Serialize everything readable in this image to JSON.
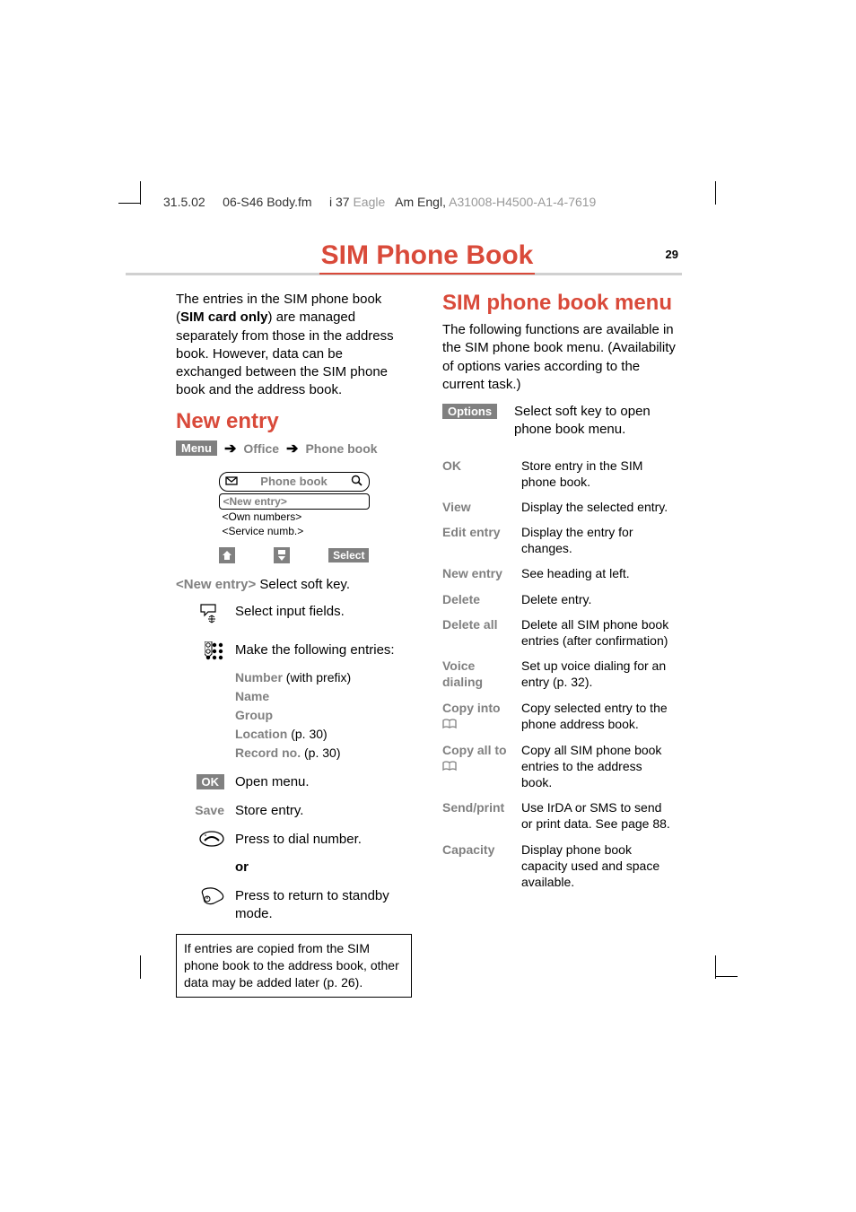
{
  "header": {
    "date": "31.5.02",
    "file": "06-S46 Body.fm",
    "idx": "i 37",
    "project": "Eagle",
    "lang": "Am Engl",
    "docnum": "A31008-H4500-A1-4-7619"
  },
  "page": {
    "title": "SIM Phone Book",
    "number": "29"
  },
  "intro": {
    "pre": "The entries in the SIM phone book (",
    "bold": "SIM card only",
    "post": ") are managed separately from those in the address book. However, data can be exchanged between the SIM phone book and the address book."
  },
  "new_entry": {
    "heading": "New entry",
    "nav": {
      "menu": "Menu",
      "office": "Office",
      "pb": "Phone book"
    },
    "screen": {
      "title": "Phone book",
      "hl": "<New entry>",
      "items": [
        "<Own numbers>",
        "<Service numb.>"
      ],
      "select": "Select"
    },
    "step_newentry_label": "<New entry>",
    "step_newentry_text": "Select soft key.",
    "step_cursor": "Select input fields.",
    "step_keypad": "Make the following entries:",
    "fields": {
      "number": "Number",
      "number_post": " (with prefix)",
      "name": "Name",
      "group": "Group",
      "location": "Location",
      "location_post": " (p. 30)",
      "record": "Record no.",
      "record_post": " (p. 30)"
    },
    "step_ok_tag": "OK",
    "step_ok": "Open menu.",
    "step_save_label": "Save",
    "step_save": "Store entry.",
    "step_dial": "Press to dial number.",
    "or": "or",
    "step_standby": "Press to return to standby mode.",
    "note": "If entries are copied from the SIM phone book to the address book, other data may be added later (p. 26)."
  },
  "menu": {
    "heading": "SIM phone book menu",
    "intro": "The following functions are available in the SIM phone book menu. (Availability of options varies according to the current task.)",
    "options_tag": "Options",
    "options_desc": "Select soft key to open phone book menu.",
    "rows": [
      {
        "label": "OK",
        "desc": "Store entry in the SIM phone book."
      },
      {
        "label": "View",
        "desc": "Display the selected entry."
      },
      {
        "label": "Edit entry",
        "desc": "Display the entry for changes."
      },
      {
        "label": "New entry",
        "desc": "See heading at left."
      },
      {
        "label": "Delete",
        "desc": "Delete entry."
      },
      {
        "label": "Delete all",
        "desc": "Delete all SIM phone book entries (after confirmation)"
      },
      {
        "label": "Voice dialing",
        "desc": "Set up voice dialing for an entry (p. 32)."
      },
      {
        "label": "Copy into ",
        "desc": "Copy selected entry to the phone address book.",
        "icon": true
      },
      {
        "label": "Copy all to",
        "desc": "Copy all SIM phone book entries to the address book.",
        "icon": true
      },
      {
        "label": "Send/print",
        "desc": "Use IrDA or SMS to send or print data. See page 88."
      },
      {
        "label": "Capacity",
        "desc": "Display phone book capacity used and space available."
      }
    ]
  }
}
